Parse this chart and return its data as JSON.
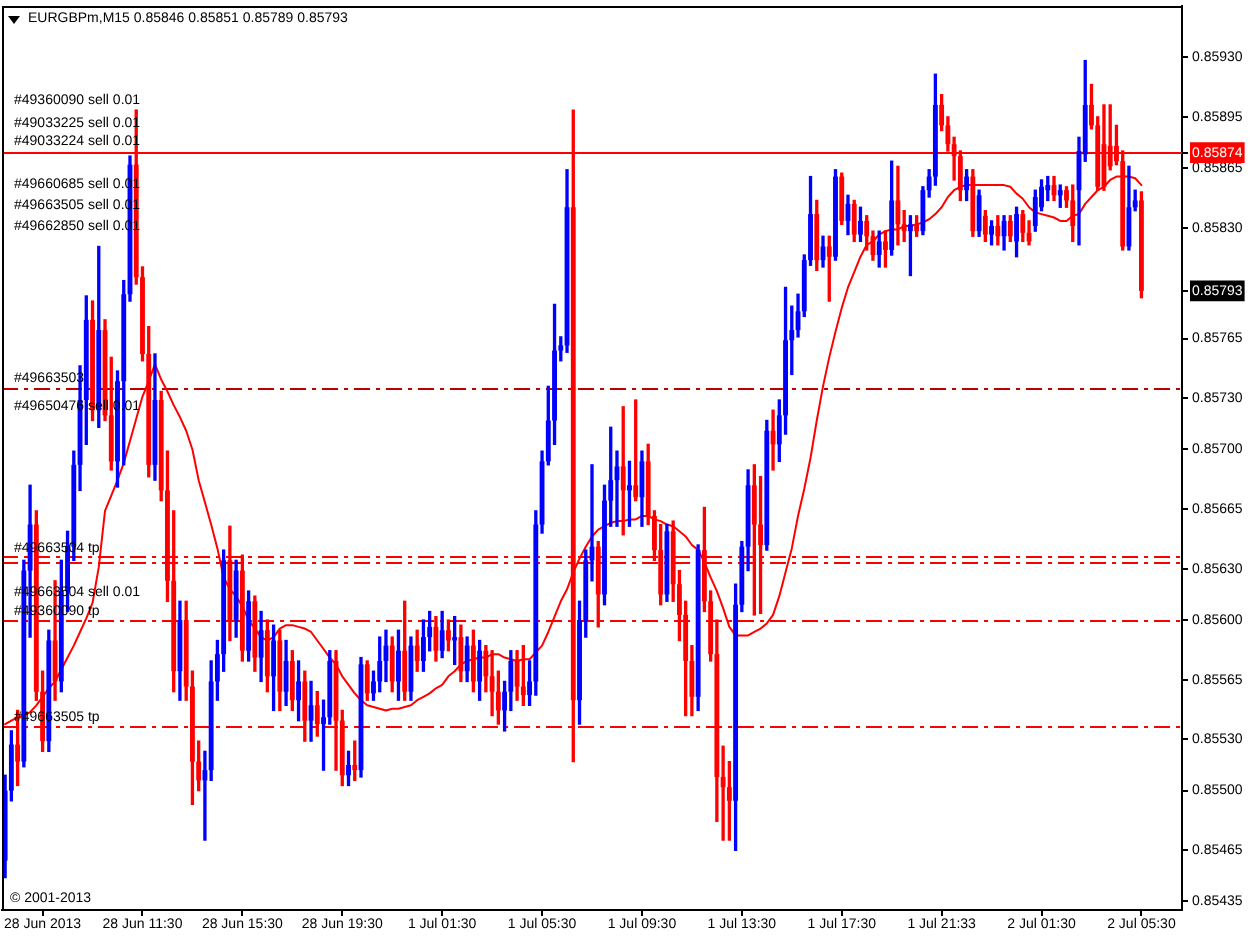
{
  "chart_data": {
    "type": "candlestick",
    "title": "EURGBPm,M15 0.85846 0.85851 0.85789 0.85793",
    "categories": [
      null,
      null,
      null,
      null,
      null,
      null,
      "28 Jun 2013",
      null,
      null,
      null,
      null,
      null,
      null,
      null,
      null,
      null,
      null,
      null,
      null,
      null,
      null,
      null,
      "28 Jun 11:30",
      null,
      null,
      null,
      null,
      null,
      null,
      null,
      null,
      null,
      null,
      null,
      null,
      null,
      null,
      null,
      "28 Jun 15:30",
      null,
      null,
      null,
      null,
      null,
      null,
      null,
      null,
      null,
      null,
      null,
      null,
      null,
      null,
      null,
      "28 Jun 19:30",
      null,
      null,
      null,
      null,
      null,
      null,
      null,
      null,
      null,
      null,
      null,
      null,
      null,
      null,
      null,
      "1 Jul 01:30",
      null,
      null,
      null,
      null,
      null,
      null,
      null,
      null,
      null,
      null,
      null,
      null,
      null,
      null,
      null,
      "1 Jul 05:30",
      null,
      null,
      null,
      null,
      null,
      null,
      null,
      null,
      null,
      null,
      null,
      null,
      null,
      null,
      null,
      "1 Jul 09:30",
      null,
      null,
      null,
      null,
      null,
      null,
      null,
      null,
      null,
      null,
      null,
      null,
      null,
      null,
      null,
      "1 Jul 13:30",
      null,
      null,
      null,
      null,
      null,
      null,
      null,
      null,
      null,
      null,
      null,
      null,
      null,
      null,
      null,
      "1 Jul 17:30",
      null,
      null,
      null,
      null,
      null,
      null,
      null,
      null,
      null,
      null,
      null,
      null,
      null,
      null,
      null,
      "1 Jul 21:33",
      null,
      null,
      null,
      null,
      null,
      null,
      null,
      null,
      null,
      null,
      null,
      null,
      null,
      null,
      null,
      "2 Jul 01:30",
      null,
      null,
      null,
      null,
      null,
      null,
      null,
      null,
      null,
      null,
      null,
      null,
      null,
      null,
      null,
      "2 Jul 05:30",
      null,
      null,
      null,
      null,
      null,
      null
    ],
    "ohlc": [
      [
        0.85459,
        0.85509,
        0.85449,
        0.855
      ],
      [
        0.855,
        0.85535,
        0.85494,
        0.85527
      ],
      [
        0.85527,
        0.85547,
        0.85503,
        0.85517
      ],
      [
        0.85517,
        0.85635,
        0.85514,
        0.85629
      ],
      [
        0.85629,
        0.85679,
        0.8559,
        0.85656
      ],
      [
        0.85656,
        0.85664,
        0.85553,
        0.85558
      ],
      [
        0.85558,
        0.8557,
        0.85523,
        0.85529
      ],
      [
        0.85529,
        0.85594,
        0.85523,
        0.85588
      ],
      [
        0.85588,
        0.85623,
        0.85553,
        0.85564
      ],
      [
        0.85564,
        0.85635,
        0.85558,
        0.85617
      ],
      [
        0.85617,
        0.85652,
        0.85605,
        0.85643
      ],
      [
        0.85643,
        0.85699,
        0.85635,
        0.85691
      ],
      [
        0.85691,
        0.85749,
        0.85676,
        0.85729
      ],
      [
        0.85729,
        0.8579,
        0.85703,
        0.85776
      ],
      [
        0.85776,
        0.85787,
        0.85717,
        0.85723
      ],
      [
        0.85723,
        0.85819,
        0.85713,
        0.8577
      ],
      [
        0.8577,
        0.85776,
        0.85717,
        0.8572
      ],
      [
        0.8572,
        0.85754,
        0.85688,
        0.85693
      ],
      [
        0.85693,
        0.85746,
        0.85678,
        0.8574
      ],
      [
        0.8574,
        0.85799,
        0.85691,
        0.85791
      ],
      [
        0.85791,
        0.85872,
        0.85787,
        0.85867
      ],
      [
        0.85867,
        0.85899,
        0.85797,
        0.85801
      ],
      [
        0.85801,
        0.85807,
        0.85752,
        0.85756
      ],
      [
        0.85756,
        0.85772,
        0.85684,
        0.85691
      ],
      [
        0.85691,
        0.85756,
        0.85682,
        0.85729
      ],
      [
        0.85729,
        0.85734,
        0.8567,
        0.85676
      ],
      [
        0.85676,
        0.85699,
        0.85611,
        0.85623
      ],
      [
        0.85623,
        0.85664,
        0.85558,
        0.8557
      ],
      [
        0.8557,
        0.85611,
        0.85553,
        0.856
      ],
      [
        0.856,
        0.85611,
        0.85553,
        0.85561
      ],
      [
        0.85561,
        0.8557,
        0.85492,
        0.85517
      ],
      [
        0.85517,
        0.85529,
        0.855,
        0.85506
      ],
      [
        0.85506,
        0.85523,
        0.85471,
        0.85512
      ],
      [
        0.85512,
        0.85576,
        0.85506,
        0.85564
      ],
      [
        0.85564,
        0.85588,
        0.85553,
        0.8558
      ],
      [
        0.8558,
        0.85641,
        0.8557,
        0.85635
      ],
      [
        0.85635,
        0.85655,
        0.85588,
        0.856
      ],
      [
        0.856,
        0.85635,
        0.8559,
        0.85629
      ],
      [
        0.85629,
        0.85638,
        0.85576,
        0.85582
      ],
      [
        0.85582,
        0.85617,
        0.85576,
        0.85611
      ],
      [
        0.85611,
        0.85614,
        0.8557,
        0.85578
      ],
      [
        0.85578,
        0.85605,
        0.85564,
        0.85594
      ],
      [
        0.85594,
        0.856,
        0.85558,
        0.85567
      ],
      [
        0.85567,
        0.85597,
        0.85547,
        0.85588
      ],
      [
        0.85588,
        0.85594,
        0.85547,
        0.85558
      ],
      [
        0.85558,
        0.85588,
        0.8555,
        0.85576
      ],
      [
        0.85576,
        0.85582,
        0.85547,
        0.85553
      ],
      [
        0.85553,
        0.85576,
        0.85541,
        0.85564
      ],
      [
        0.85564,
        0.8557,
        0.85529,
        0.85541
      ],
      [
        0.85541,
        0.85564,
        0.85529,
        0.8555
      ],
      [
        0.8555,
        0.85558,
        0.85532,
        0.85539
      ],
      [
        0.85539,
        0.85553,
        0.85512,
        0.85543
      ],
      [
        0.85543,
        0.85582,
        0.85539,
        0.85576
      ],
      [
        0.85576,
        0.85582,
        0.85512,
        0.85541
      ],
      [
        0.85541,
        0.85547,
        0.85503,
        0.85509
      ],
      [
        0.85509,
        0.85523,
        0.85503,
        0.85515
      ],
      [
        0.85515,
        0.85529,
        0.85506,
        0.85512
      ],
      [
        0.85512,
        0.85578,
        0.85508,
        0.85574
      ],
      [
        0.85574,
        0.85576,
        0.85553,
        0.85557
      ],
      [
        0.85557,
        0.8557,
        0.85553,
        0.85564
      ],
      [
        0.85564,
        0.8559,
        0.85558,
        0.85576
      ],
      [
        0.85576,
        0.85594,
        0.85564,
        0.85585
      ],
      [
        0.85585,
        0.8559,
        0.85558,
        0.85564
      ],
      [
        0.85564,
        0.85594,
        0.85553,
        0.85582
      ],
      [
        0.85582,
        0.85611,
        0.85553,
        0.85558
      ],
      [
        0.85558,
        0.8559,
        0.85553,
        0.85585
      ],
      [
        0.85585,
        0.85594,
        0.8557,
        0.85576
      ],
      [
        0.85576,
        0.856,
        0.8557,
        0.8559
      ],
      [
        0.8559,
        0.85605,
        0.85582,
        0.85596
      ],
      [
        0.85596,
        0.85602,
        0.85576,
        0.85582
      ],
      [
        0.85582,
        0.85605,
        0.85578,
        0.85594
      ],
      [
        0.85594,
        0.856,
        0.85582,
        0.85588
      ],
      [
        0.85588,
        0.85602,
        0.85574,
        0.8559
      ],
      [
        0.8559,
        0.85597,
        0.85564,
        0.8557
      ],
      [
        0.8557,
        0.8559,
        0.85564,
        0.85585
      ],
      [
        0.85585,
        0.85594,
        0.85558,
        0.85564
      ],
      [
        0.85564,
        0.85588,
        0.85553,
        0.85582
      ],
      [
        0.85582,
        0.85585,
        0.85558,
        0.85567
      ],
      [
        0.85567,
        0.85582,
        0.85544,
        0.85558
      ],
      [
        0.85558,
        0.8557,
        0.85539,
        0.85547
      ],
      [
        0.85547,
        0.85564,
        0.85535,
        0.85558
      ],
      [
        0.85558,
        0.85582,
        0.85547,
        0.85576
      ],
      [
        0.85576,
        0.85582,
        0.85553,
        0.85561
      ],
      [
        0.85561,
        0.85585,
        0.8555,
        0.85556
      ],
      [
        0.85556,
        0.85576,
        0.8555,
        0.85564
      ],
      [
        0.85564,
        0.85664,
        0.85556,
        0.85656
      ],
      [
        0.85656,
        0.85699,
        0.85651,
        0.85693
      ],
      [
        0.85693,
        0.85737,
        0.85691,
        0.85717
      ],
      [
        0.85717,
        0.85785,
        0.85703,
        0.85758
      ],
      [
        0.85758,
        0.85766,
        0.85752,
        0.85761
      ],
      [
        0.85761,
        0.85864,
        0.85757,
        0.85842
      ],
      [
        0.85842,
        0.85899,
        0.85517,
        0.85553
      ],
      [
        0.85553,
        0.85611,
        0.85539,
        0.856
      ],
      [
        0.856,
        0.85641,
        0.8559,
        0.85635
      ],
      [
        0.85635,
        0.85691,
        0.85623,
        0.85643
      ],
      [
        0.85643,
        0.85646,
        0.85596,
        0.85615
      ],
      [
        0.85615,
        0.85679,
        0.85609,
        0.8567
      ],
      [
        0.8567,
        0.85713,
        0.85655,
        0.85682
      ],
      [
        0.85682,
        0.85699,
        0.85655,
        0.8569
      ],
      [
        0.8569,
        0.85725,
        0.8565,
        0.85676
      ],
      [
        0.85676,
        0.85693,
        0.85655,
        0.85679
      ],
      [
        0.85679,
        0.85729,
        0.8567,
        0.85672
      ],
      [
        0.85672,
        0.85699,
        0.85655,
        0.85693
      ],
      [
        0.85693,
        0.85703,
        0.85656,
        0.85661
      ],
      [
        0.85661,
        0.85664,
        0.85635,
        0.85641
      ],
      [
        0.85641,
        0.85656,
        0.85609,
        0.85615
      ],
      [
        0.85615,
        0.85656,
        0.85611,
        0.85652
      ],
      [
        0.85652,
        0.85658,
        0.85611,
        0.85621
      ],
      [
        0.85621,
        0.85629,
        0.85588,
        0.85603
      ],
      [
        0.85603,
        0.85611,
        0.85544,
        0.85576
      ],
      [
        0.85576,
        0.85585,
        0.85544,
        0.85555
      ],
      [
        0.85555,
        0.85644,
        0.85547,
        0.85641
      ],
      [
        0.85641,
        0.85666,
        0.85605,
        0.85611
      ],
      [
        0.85611,
        0.85617,
        0.85576,
        0.8558
      ],
      [
        0.8558,
        0.856,
        0.85482,
        0.85508
      ],
      [
        0.85508,
        0.85526,
        0.85471,
        0.85502
      ],
      [
        0.85502,
        0.85517,
        0.85471,
        0.85494
      ],
      [
        0.85494,
        0.85621,
        0.85465,
        0.85609
      ],
      [
        0.85609,
        0.85646,
        0.85605,
        0.85643
      ],
      [
        0.85643,
        0.85688,
        0.85629,
        0.85679
      ],
      [
        0.85679,
        0.85691,
        0.85603,
        0.85656
      ],
      [
        0.85656,
        0.85684,
        0.85604,
        0.85644
      ],
      [
        0.85644,
        0.85717,
        0.85641,
        0.85711
      ],
      [
        0.85711,
        0.85723,
        0.85688,
        0.85703
      ],
      [
        0.85703,
        0.85729,
        0.85693,
        0.8572
      ],
      [
        0.8572,
        0.85795,
        0.85709,
        0.85764
      ],
      [
        0.85764,
        0.85784,
        0.85744,
        0.8577
      ],
      [
        0.8577,
        0.85791,
        0.85766,
        0.85781
      ],
      [
        0.85781,
        0.85814,
        0.85778,
        0.85811
      ],
      [
        0.85811,
        0.8586,
        0.85808,
        0.85838
      ],
      [
        0.85838,
        0.85846,
        0.85805,
        0.85811
      ],
      [
        0.85811,
        0.85825,
        0.85807,
        0.85819
      ],
      [
        0.85819,
        0.85825,
        0.85787,
        0.85813
      ],
      [
        0.85813,
        0.85864,
        0.85811,
        0.8586
      ],
      [
        0.8586,
        0.85862,
        0.85832,
        0.85834
      ],
      [
        0.85834,
        0.85849,
        0.85826,
        0.85844
      ],
      [
        0.85844,
        0.85846,
        0.85822,
        0.85826
      ],
      [
        0.85826,
        0.85842,
        0.85822,
        0.85834
      ],
      [
        0.85834,
        0.85837,
        0.85817,
        0.85825
      ],
      [
        0.85825,
        0.85828,
        0.85811,
        0.85814
      ],
      [
        0.85814,
        0.85828,
        0.85807,
        0.85822
      ],
      [
        0.85822,
        0.85828,
        0.85807,
        0.85817
      ],
      [
        0.85817,
        0.85869,
        0.85814,
        0.85846
      ],
      [
        0.85846,
        0.85866,
        0.8582,
        0.85832
      ],
      [
        0.85832,
        0.8584,
        0.85822,
        0.85828
      ],
      [
        0.85828,
        0.85837,
        0.85802,
        0.85832
      ],
      [
        0.85832,
        0.85837,
        0.85825,
        0.85828
      ],
      [
        0.85828,
        0.85854,
        0.85826,
        0.85852
      ],
      [
        0.85852,
        0.85864,
        0.85848,
        0.8586
      ],
      [
        0.8586,
        0.8592,
        0.85855,
        0.85902
      ],
      [
        0.85902,
        0.85908,
        0.85887,
        0.8589
      ],
      [
        0.8589,
        0.85895,
        0.85875,
        0.85879
      ],
      [
        0.85879,
        0.85883,
        0.85858,
        0.85872
      ],
      [
        0.85872,
        0.85875,
        0.85846,
        0.85852
      ],
      [
        0.85852,
        0.85864,
        0.85846,
        0.8586
      ],
      [
        0.8586,
        0.85864,
        0.85825,
        0.85828
      ],
      [
        0.85828,
        0.85852,
        0.85825,
        0.85849
      ],
      [
        0.85837,
        0.8584,
        0.85822,
        0.85826
      ],
      [
        0.85826,
        0.85834,
        0.8582,
        0.85831
      ],
      [
        0.85831,
        0.85837,
        0.8582,
        0.85825
      ],
      [
        0.85825,
        0.85837,
        0.85817,
        0.85834
      ],
      [
        0.85834,
        0.85837,
        0.85822,
        0.85825
      ],
      [
        0.85822,
        0.85842,
        0.85813,
        0.85838
      ],
      [
        0.85838,
        0.8584,
        0.85822,
        0.85827
      ],
      [
        0.85827,
        0.85834,
        0.8582,
        0.85822
      ],
      [
        0.85831,
        0.85852,
        0.85828,
        0.85848
      ],
      [
        0.85842,
        0.85858,
        0.8584,
        0.85854
      ],
      [
        0.85852,
        0.8586,
        0.85846,
        0.85855
      ],
      [
        0.85855,
        0.8586,
        0.85846,
        0.85849
      ],
      [
        0.85849,
        0.85855,
        0.85842,
        0.85852
      ],
      [
        0.85852,
        0.85854,
        0.85842,
        0.85846
      ],
      [
        0.85846,
        0.85855,
        0.85822,
        0.85831
      ],
      [
        0.85852,
        0.85883,
        0.8582,
        0.85875
      ],
      [
        0.85873,
        0.85928,
        0.85869,
        0.85902
      ],
      [
        0.85902,
        0.85914,
        0.85888,
        0.8589
      ],
      [
        0.8589,
        0.85895,
        0.85852,
        0.85854
      ],
      [
        0.85879,
        0.85902,
        0.85852,
        0.85854
      ],
      [
        0.85878,
        0.85902,
        0.85864,
        0.85866
      ],
      [
        0.85878,
        0.8589,
        0.85867,
        0.85869
      ],
      [
        0.85869,
        0.85875,
        0.85817,
        0.85819
      ],
      [
        0.85819,
        0.85866,
        0.85817,
        0.85842
      ],
      [
        0.85842,
        0.85852,
        0.8584,
        0.85846
      ],
      [
        0.85846,
        0.85851,
        0.85789,
        0.85793
      ],
      null,
      null,
      null,
      null,
      null,
      null
    ],
    "colors": [
      "#0000ff",
      "#0000ff",
      "#ff0000",
      "#0000ff",
      "#0000ff",
      "#ff0000",
      "#ff0000",
      "#0000ff",
      "#ff0000",
      "#0000ff",
      "#0000ff",
      "#0000ff",
      "#0000ff",
      "#0000ff",
      "#ff0000",
      "#0000ff",
      "#ff0000",
      "#ff0000",
      "#0000ff",
      "#0000ff",
      "#0000ff",
      "#ff0000",
      "#ff0000",
      "#ff0000",
      "#0000ff",
      "#ff0000",
      "#ff0000",
      "#ff0000",
      "#0000ff",
      "#ff0000",
      "#ff0000",
      "#ff0000",
      "#0000ff",
      "#0000ff",
      "#0000ff",
      "#0000ff",
      "#ff0000",
      "#0000ff",
      "#ff0000",
      "#0000ff",
      "#ff0000",
      "#0000ff",
      "#ff0000",
      "#0000ff",
      "#ff0000",
      "#0000ff",
      "#ff0000",
      "#0000ff",
      "#ff0000",
      "#0000ff",
      "#ff0000",
      "#0000ff",
      "#0000ff",
      "#ff0000",
      "#ff0000",
      "#0000ff",
      "#ff0000",
      "#0000ff",
      "#ff0000",
      "#0000ff",
      "#0000ff",
      "#0000ff",
      "#ff0000",
      "#0000ff",
      "#ff0000",
      "#0000ff",
      "#ff0000",
      "#0000ff",
      "#0000ff",
      "#ff0000",
      "#0000ff",
      "#ff0000",
      "#0000ff",
      "#ff0000",
      "#0000ff",
      "#ff0000",
      "#0000ff",
      "#ff0000",
      "#ff0000",
      "#ff0000",
      "#0000ff",
      "#0000ff",
      "#ff0000",
      "#ff0000",
      "#0000ff",
      "#0000ff",
      "#0000ff",
      "#0000ff",
      "#0000ff",
      "#0000ff",
      "#0000ff",
      "#ff0000",
      "#0000ff",
      "#0000ff",
      "#0000ff",
      "#ff0000",
      "#0000ff",
      "#0000ff",
      "#0000ff",
      "#ff0000",
      "#0000ff",
      "#ff0000",
      "#0000ff",
      "#ff0000",
      "#ff0000",
      "#ff0000",
      "#0000ff",
      "#ff0000",
      "#ff0000",
      "#ff0000",
      "#ff0000",
      "#0000ff",
      "#ff0000",
      "#ff0000",
      "#ff0000",
      "#ff0000",
      "#ff0000",
      "#0000ff",
      "#0000ff",
      "#0000ff",
      "#ff0000",
      "#ff0000",
      "#0000ff",
      "#ff0000",
      "#0000ff",
      "#0000ff",
      "#0000ff",
      "#0000ff",
      "#0000ff",
      "#0000ff",
      "#ff0000",
      "#0000ff",
      "#ff0000",
      "#0000ff",
      "#ff0000",
      "#0000ff",
      "#ff0000",
      "#0000ff",
      "#ff0000",
      "#ff0000",
      "#0000ff",
      "#ff0000",
      "#0000ff",
      "#ff0000",
      "#ff0000",
      "#0000ff",
      "#ff0000",
      "#0000ff",
      "#0000ff",
      "#0000ff",
      "#ff0000",
      "#ff0000",
      "#ff0000",
      "#ff0000",
      "#0000ff",
      "#ff0000",
      "#0000ff",
      "#ff0000",
      "#0000ff",
      "#ff0000",
      "#0000ff",
      "#ff0000",
      "#0000ff",
      "#ff0000",
      "#ff0000",
      "#0000ff",
      "#0000ff",
      "#0000ff",
      "#ff0000",
      "#0000ff",
      "#ff0000",
      "#ff0000",
      "#0000ff",
      "#0000ff",
      "#ff0000",
      "#ff0000",
      "#ff0000",
      "#ff0000",
      "#ff0000",
      "#ff0000",
      "#0000ff",
      "#0000ff",
      "#ff0000",
      null,
      null,
      null,
      null,
      null,
      null
    ],
    "series": [
      {
        "type": "line",
        "color": "#ff0000",
        "values": [
          0.85539,
          0.85541,
          0.85543,
          0.85544,
          0.85546,
          0.8555,
          0.85555,
          0.8556,
          0.85564,
          0.85571,
          0.85578,
          0.85585,
          0.85593,
          0.85601,
          0.8561,
          0.85631,
          0.85664,
          0.85673,
          0.85682,
          0.85692,
          0.85705,
          0.85718,
          0.85731,
          0.8574,
          0.8575,
          0.85741,
          0.85734,
          0.85726,
          0.85719,
          0.85711,
          0.857,
          0.85682,
          0.85669,
          0.85656,
          0.85642,
          0.85625,
          0.85618,
          0.85614,
          0.85608,
          0.856,
          0.85595,
          0.8559,
          0.85588,
          0.8559,
          0.85595,
          0.85597,
          0.85597,
          0.85596,
          0.85595,
          0.85593,
          0.85588,
          0.85583,
          0.85578,
          0.85574,
          0.85567,
          0.85562,
          0.85557,
          0.85553,
          0.8555,
          0.85549,
          0.85548,
          0.85547,
          0.85548,
          0.85548,
          0.85549,
          0.8555,
          0.85553,
          0.85555,
          0.85557,
          0.8556,
          0.85562,
          0.85567,
          0.8557,
          0.85574,
          0.85576,
          0.85577,
          0.85578,
          0.85578,
          0.8558,
          0.8558,
          0.85578,
          0.85577,
          0.85576,
          0.85577,
          0.85577,
          0.85581,
          0.85585,
          0.85593,
          0.85602,
          0.85611,
          0.85618,
          0.85628,
          0.85636,
          0.85643,
          0.85649,
          0.85653,
          0.85655,
          0.85657,
          0.85658,
          0.85658,
          0.85659,
          0.85659,
          0.85661,
          0.85661,
          0.85659,
          0.85658,
          0.85656,
          0.85655,
          0.85652,
          0.85649,
          0.85644,
          0.85641,
          0.85634,
          0.85625,
          0.85617,
          0.85607,
          0.85596,
          0.85591,
          0.85591,
          0.85591,
          0.85593,
          0.85595,
          0.85598,
          0.85603,
          0.85614,
          0.85628,
          0.85642,
          0.85661,
          0.85677,
          0.85695,
          0.85717,
          0.85737,
          0.85754,
          0.85769,
          0.85783,
          0.85795,
          0.85804,
          0.85813,
          0.8582,
          0.85822,
          0.85826,
          0.85828,
          0.85829,
          0.85829,
          0.85831,
          0.85831,
          0.85832,
          0.85833,
          0.85835,
          0.85838,
          0.85842,
          0.85848,
          0.85852,
          0.85854,
          0.85855,
          0.85855,
          0.85855,
          0.85855,
          0.85855,
          0.85855,
          0.85855,
          0.85854,
          0.8585,
          0.85847,
          0.85842,
          0.85839,
          0.85838,
          0.85837,
          0.85836,
          0.85834,
          0.85834,
          0.85837,
          0.85838,
          0.85844,
          0.85848,
          0.85852,
          0.85854,
          0.85858,
          0.8586,
          0.8586,
          0.8586,
          0.85859,
          0.85855,
          null,
          null,
          null,
          null,
          null,
          null
        ]
      }
    ],
    "ylim": [
      0.8543,
      0.8596
    ],
    "yticks": [
      0.85435,
      0.85465,
      {
        "value": 0.855,
        "label": "0.85500"
      },
      {
        "value": 0.8553,
        "label": "0.85530"
      },
      0.85565,
      {
        "value": 0.856,
        "label": "0.85600"
      },
      {
        "value": 0.8563,
        "label": "0.85630"
      },
      0.85665,
      {
        "value": 0.857,
        "label": "0.85700"
      },
      {
        "value": 0.8573,
        "label": "0.85730"
      },
      0.85765,
      0.85793,
      {
        "value": 0.8583,
        "label": "0.85830"
      },
      0.85865,
      0.85874,
      0.85895,
      {
        "value": 0.8593,
        "label": "0.85930"
      }
    ],
    "ref_lines": [
      {
        "axis": "y",
        "value": 0.85874,
        "color": "#ff0000",
        "line_style": "solid"
      },
      {
        "axis": "y",
        "value": 0.85736,
        "color": "#c00000",
        "line_style": "dashed"
      },
      {
        "axis": "y",
        "value": 0.85637,
        "label": "#49663504 tp",
        "color": "#ff0000",
        "line_style": "dashed"
      },
      {
        "axis": "y",
        "value": 0.856,
        "label": "#49360090 tp",
        "color": "#ff0000",
        "line_style": "dashed"
      },
      {
        "axis": "y",
        "value": 0.85538,
        "label": "#49663505 tp",
        "color": "#ff0000",
        "line_style": "dashed"
      },
      {
        "axis": "y",
        "value": 0.85634,
        "color": "#ff0000",
        "line_style": "dashed"
      }
    ],
    "annotations": [
      "#49360090 sell 0.01",
      "#49033225 sell 0.01",
      "#49033224 sell 0.01",
      "#49660685 sell 0.01",
      "#49663505 sell 0.01",
      "#49662850 sell 0.01",
      "#49663503",
      "#49650476 sell 0.01",
      "#49663504 sell 0.01",
      "© 2001-2013"
    ]
  }
}
